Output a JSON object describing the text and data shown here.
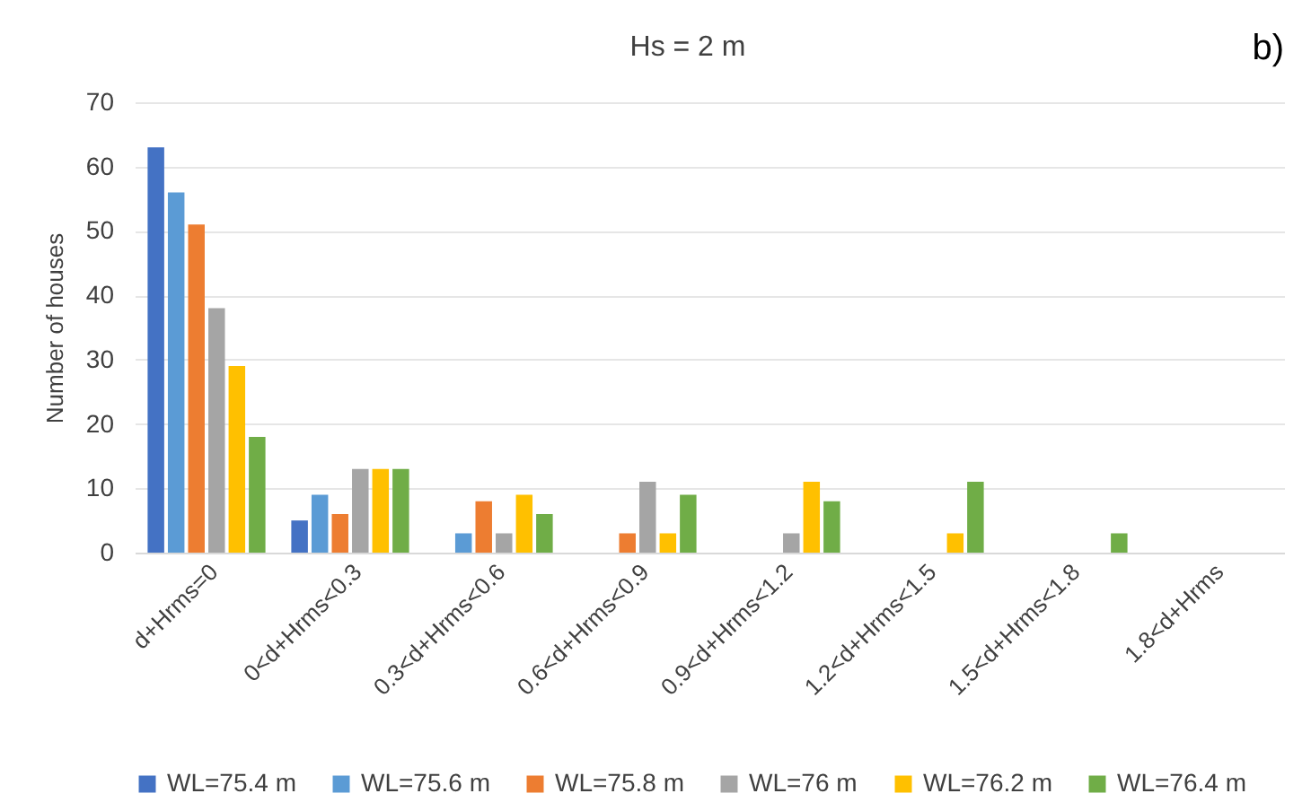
{
  "chart_data": {
    "type": "bar",
    "title": "Hs = 2 m",
    "ylabel": "Number of houses",
    "annotations": [
      "b)"
    ],
    "categories": [
      "d+Hrms=0",
      "0<d+Hrms<0.3",
      "0.3<d+Hrms<0.6",
      "0.6<d+Hrms<0.9",
      "0.9<d+Hrms<1.2",
      "1.2<d+Hrms<1.5",
      "1.5<d+Hrms<1.8",
      "1.8<d+Hrms"
    ],
    "series": [
      {
        "name": "WL=75.4 m",
        "color": "#4472c4",
        "values": [
          63,
          5,
          0,
          0,
          0,
          0,
          0,
          0
        ]
      },
      {
        "name": "WL=75.6 m",
        "color": "#5b9bd5",
        "values": [
          56,
          9,
          3,
          0,
          0,
          0,
          0,
          0
        ]
      },
      {
        "name": "WL=75.8 m",
        "color": "#ed7d31",
        "values": [
          51,
          6,
          8,
          3,
          0,
          0,
          0,
          0
        ]
      },
      {
        "name": "WL=76 m",
        "color": "#a5a5a5",
        "values": [
          38,
          13,
          3,
          11,
          3,
          0,
          0,
          0
        ]
      },
      {
        "name": "WL=76.2 m",
        "color": "#ffc000",
        "values": [
          29,
          13,
          9,
          3,
          11,
          3,
          0,
          0
        ]
      },
      {
        "name": "WL=76.4 m",
        "color": "#70ad47",
        "values": [
          18,
          13,
          6,
          9,
          8,
          11,
          3,
          0
        ]
      }
    ],
    "ylim": [
      0,
      70
    ],
    "yticks": [
      0,
      10,
      20,
      30,
      40,
      50,
      60,
      70
    ],
    "grid": "y",
    "legend": "bottom"
  }
}
